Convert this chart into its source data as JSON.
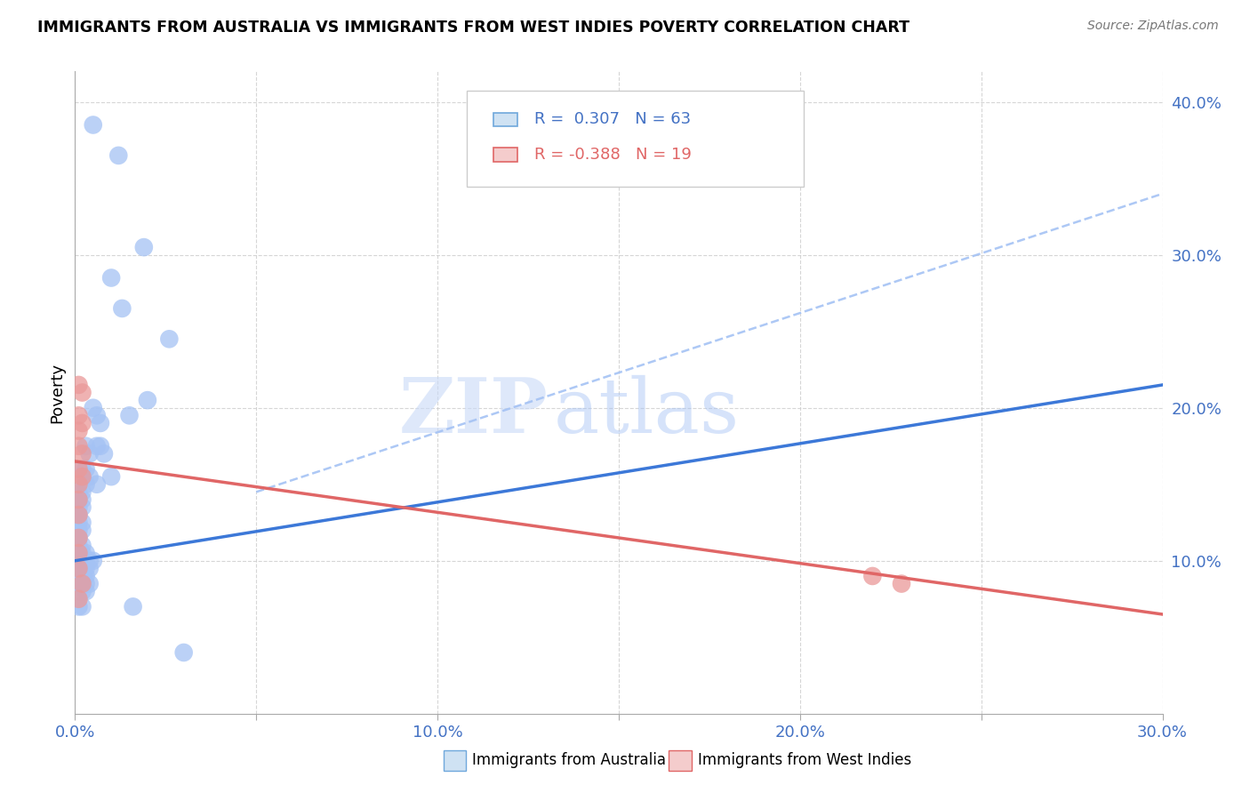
{
  "title": "IMMIGRANTS FROM AUSTRALIA VS IMMIGRANTS FROM WEST INDIES POVERTY CORRELATION CHART",
  "source": "Source: ZipAtlas.com",
  "xlabel_blue": "Immigrants from Australia",
  "xlabel_pink": "Immigrants from West Indies",
  "ylabel": "Poverty",
  "xlim": [
    0,
    0.3
  ],
  "ylim": [
    0,
    0.42
  ],
  "legend_blue_R": "0.307",
  "legend_blue_N": "63",
  "legend_pink_R": "-0.388",
  "legend_pink_N": "19",
  "blue_color": "#a4c2f4",
  "pink_color": "#ea9999",
  "trendline_blue": "#3c78d8",
  "trendline_pink": "#e06666",
  "dashed_color": "#a4c2f4",
  "watermark_zip": "ZIP",
  "watermark_atlas": "atlas",
  "blue_dots": [
    [
      0.005,
      0.385
    ],
    [
      0.012,
      0.365
    ],
    [
      0.01,
      0.285
    ],
    [
      0.019,
      0.305
    ],
    [
      0.013,
      0.265
    ],
    [
      0.026,
      0.245
    ],
    [
      0.02,
      0.205
    ],
    [
      0.015,
      0.195
    ],
    [
      0.006,
      0.175
    ],
    [
      0.007,
      0.175
    ],
    [
      0.008,
      0.17
    ],
    [
      0.006,
      0.15
    ],
    [
      0.01,
      0.155
    ],
    [
      0.005,
      0.2
    ],
    [
      0.006,
      0.195
    ],
    [
      0.007,
      0.19
    ],
    [
      0.003,
      0.175
    ],
    [
      0.004,
      0.17
    ],
    [
      0.003,
      0.16
    ],
    [
      0.004,
      0.155
    ],
    [
      0.002,
      0.16
    ],
    [
      0.002,
      0.155
    ],
    [
      0.003,
      0.15
    ],
    [
      0.001,
      0.145
    ],
    [
      0.002,
      0.145
    ],
    [
      0.001,
      0.14
    ],
    [
      0.002,
      0.14
    ],
    [
      0.001,
      0.135
    ],
    [
      0.002,
      0.135
    ],
    [
      0.001,
      0.13
    ],
    [
      0.001,
      0.125
    ],
    [
      0.002,
      0.125
    ],
    [
      0.001,
      0.12
    ],
    [
      0.002,
      0.12
    ],
    [
      0.001,
      0.115
    ],
    [
      0.001,
      0.11
    ],
    [
      0.002,
      0.11
    ],
    [
      0.001,
      0.105
    ],
    [
      0.002,
      0.105
    ],
    [
      0.003,
      0.105
    ],
    [
      0.001,
      0.1
    ],
    [
      0.002,
      0.1
    ],
    [
      0.003,
      0.1
    ],
    [
      0.004,
      0.1
    ],
    [
      0.005,
      0.1
    ],
    [
      0.001,
      0.095
    ],
    [
      0.002,
      0.095
    ],
    [
      0.003,
      0.095
    ],
    [
      0.004,
      0.095
    ],
    [
      0.001,
      0.09
    ],
    [
      0.002,
      0.09
    ],
    [
      0.003,
      0.09
    ],
    [
      0.001,
      0.085
    ],
    [
      0.002,
      0.085
    ],
    [
      0.003,
      0.085
    ],
    [
      0.004,
      0.085
    ],
    [
      0.001,
      0.08
    ],
    [
      0.002,
      0.08
    ],
    [
      0.003,
      0.08
    ],
    [
      0.001,
      0.07
    ],
    [
      0.002,
      0.07
    ],
    [
      0.016,
      0.07
    ],
    [
      0.03,
      0.04
    ]
  ],
  "pink_dots": [
    [
      0.001,
      0.215
    ],
    [
      0.002,
      0.21
    ],
    [
      0.001,
      0.195
    ],
    [
      0.002,
      0.19
    ],
    [
      0.001,
      0.185
    ],
    [
      0.001,
      0.175
    ],
    [
      0.002,
      0.17
    ],
    [
      0.001,
      0.16
    ],
    [
      0.002,
      0.155
    ],
    [
      0.001,
      0.15
    ],
    [
      0.001,
      0.14
    ],
    [
      0.001,
      0.13
    ],
    [
      0.001,
      0.115
    ],
    [
      0.001,
      0.105
    ],
    [
      0.001,
      0.095
    ],
    [
      0.002,
      0.085
    ],
    [
      0.001,
      0.075
    ],
    [
      0.22,
      0.09
    ],
    [
      0.228,
      0.085
    ]
  ],
  "blue_trend_x": [
    0.0,
    0.3
  ],
  "blue_trend_y": [
    0.1,
    0.215
  ],
  "pink_trend_x": [
    0.0,
    0.3
  ],
  "pink_trend_y": [
    0.165,
    0.065
  ],
  "dashed_trend_x": [
    0.05,
    0.3
  ],
  "dashed_trend_y": [
    0.145,
    0.34
  ]
}
